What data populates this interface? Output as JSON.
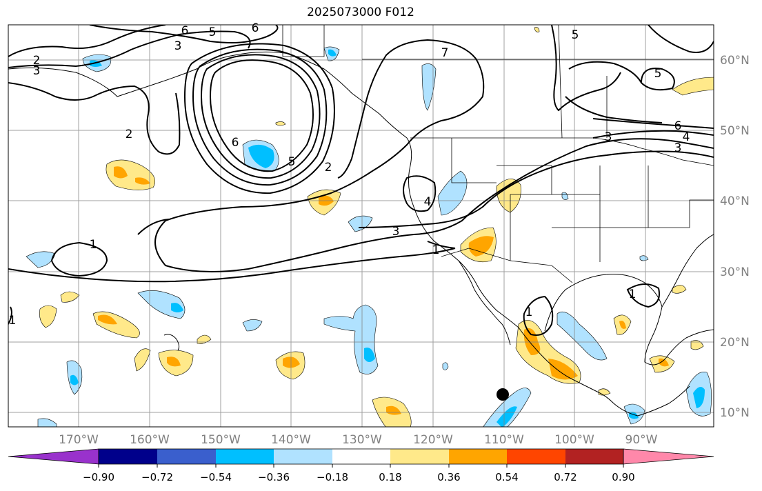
{
  "title": "2025073000 F012",
  "map": {
    "lon_labels": [
      "170°W",
      "160°W",
      "150°W",
      "140°W",
      "130°W",
      "120°W",
      "110°W",
      "100°W",
      "90°W"
    ],
    "lat_labels": [
      "60°N",
      "50°N",
      "40°N",
      "30°N",
      "20°N",
      "10°N"
    ],
    "contour_labels": [
      "6",
      "5",
      "6",
      "3",
      "2",
      "3",
      "2",
      "6",
      "5",
      "2",
      "7",
      "5",
      "5",
      "6",
      "3",
      "4",
      "3",
      "4",
      "3",
      "1",
      "1",
      "1",
      "1",
      "1"
    ],
    "point_marker": "black-dot"
  },
  "colorbar": {
    "ticks": [
      "−0.90",
      "−0.72",
      "−0.54",
      "−0.36",
      "−0.18",
      "0.18",
      "0.36",
      "0.54",
      "0.72",
      "0.90"
    ],
    "colors": [
      "#9932cc",
      "#00008b",
      "#3a5fcd",
      "#00bfff",
      "#b0e2ff",
      "#ffffff",
      "#ffe98a",
      "#ffa500",
      "#ff4500",
      "#b22222",
      "#ff88aa"
    ]
  }
}
